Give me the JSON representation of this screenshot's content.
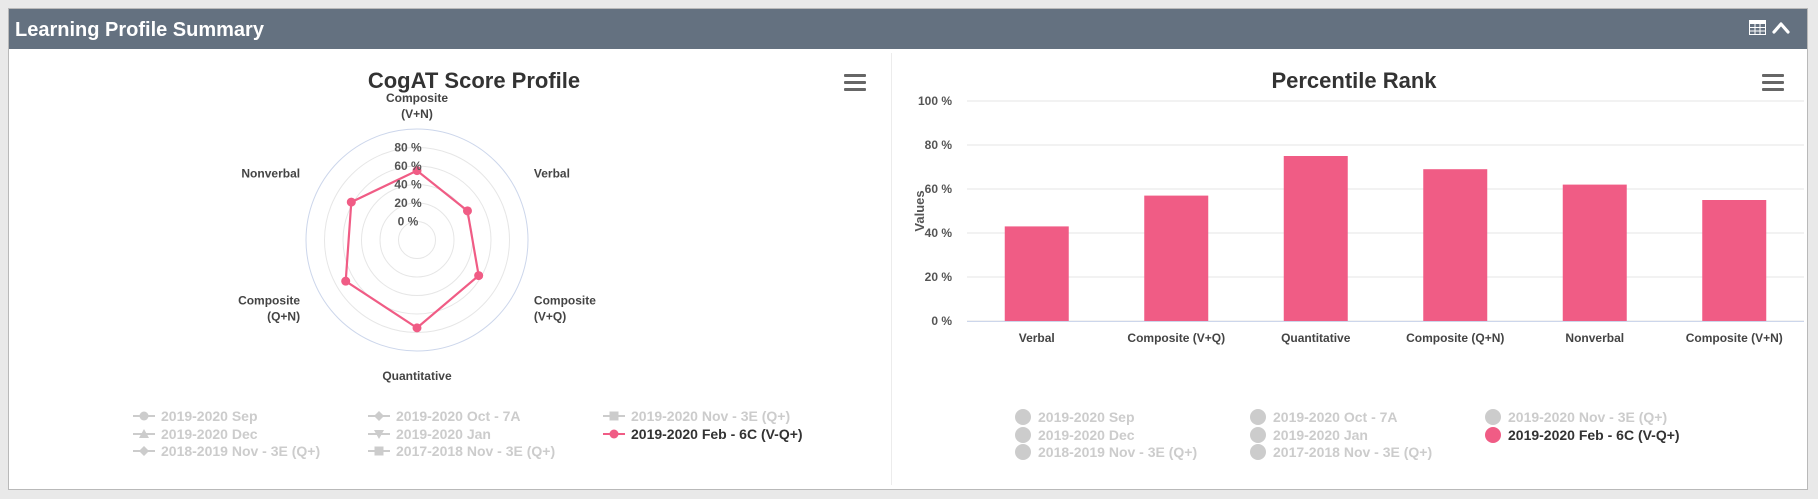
{
  "panel": {
    "title": "Learning Profile Summary",
    "icons": [
      "table-icon",
      "chevron-up-icon"
    ],
    "header_color": "#647180"
  },
  "accent_color": "#f05c85",
  "hidden_color": "#cccccc",
  "legend_series": [
    {
      "name": "2019-2020 Sep",
      "symbol": "circle",
      "visible": false
    },
    {
      "name": "2019-2020 Oct - 7A",
      "symbol": "diamond",
      "visible": false
    },
    {
      "name": "2019-2020 Nov - 3E (Q+)",
      "symbol": "square",
      "visible": false
    },
    {
      "name": "2019-2020 Dec",
      "symbol": "triangle",
      "visible": false
    },
    {
      "name": "2019-2020 Jan",
      "symbol": "triangle-down",
      "visible": false
    },
    {
      "name": "2019-2020 Feb - 6C (V-Q+)",
      "symbol": "circle",
      "visible": true
    },
    {
      "name": "2018-2019 Nov - 3E (Q+)",
      "symbol": "diamond",
      "visible": false
    },
    {
      "name": "2017-2018 Nov - 3E (Q+)",
      "symbol": "square",
      "visible": false
    }
  ],
  "chart_data": [
    {
      "type": "radar",
      "title": "CogAT Score Profile",
      "categories": [
        "Verbal",
        "Composite (V+Q)",
        "Quantitative",
        "Composite (Q+N)",
        "Nonverbal",
        "Composite (V+N)"
      ],
      "category_labels": [
        [
          "Verbal"
        ],
        [
          "Composite",
          "(V+Q)"
        ],
        [
          "Quantitative"
        ],
        [
          "Composite",
          "(Q+N)"
        ],
        [
          "Nonverbal"
        ],
        [
          "Composite",
          "(V+N)"
        ]
      ],
      "radial_ticks": [
        "0 %",
        "20 %",
        "40 %",
        "60 %",
        "80 %"
      ],
      "radial_tick_values": [
        0,
        20,
        40,
        60,
        80
      ],
      "rmin": -20,
      "rmax": 100,
      "series": [
        {
          "name": "2019-2020 Feb - 6C (V-Q+)",
          "values": [
            43,
            57,
            75,
            69,
            62,
            55
          ]
        }
      ]
    },
    {
      "type": "bar",
      "title": "Percentile Rank",
      "categories": [
        "Verbal",
        "Composite (V+Q)",
        "Quantitative",
        "Composite (Q+N)",
        "Nonverbal",
        "Composite (V+N)"
      ],
      "ylabel": "Values",
      "ylim": [
        0,
        100
      ],
      "yticks": [
        0,
        20,
        40,
        60,
        80,
        100
      ],
      "ytick_labels": [
        "0 %",
        "20 %",
        "40 %",
        "60 %",
        "80 %",
        "100 %"
      ],
      "grid": true,
      "series": [
        {
          "name": "2019-2020 Feb - 6C (V-Q+)",
          "values": [
            43,
            57,
            75,
            69,
            62,
            55
          ]
        }
      ]
    }
  ]
}
